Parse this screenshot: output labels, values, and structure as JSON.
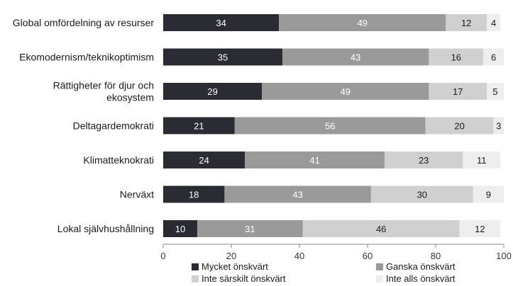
{
  "chart_data": {
    "type": "bar",
    "orientation": "horizontal",
    "stacked": true,
    "categories": [
      "Global omfördelning av resurser",
      "Ekomodernism/teknikoptimism",
      "Rättigheter för djur och ekosystem",
      "Deltagardemokrati",
      "Klimatteknokrati",
      "Nerväxt",
      "Lokal självhushållning"
    ],
    "category_lines": [
      [
        "Global omfördelning av resurser"
      ],
      [
        "Ekomodernism/teknikoptimism"
      ],
      [
        "Rättigheter för djur och",
        "ekosystem"
      ],
      [
        "Deltagardemokrati"
      ],
      [
        "Klimatteknokrati"
      ],
      [
        "Nerväxt"
      ],
      [
        "Lokal självhushållning"
      ]
    ],
    "series": [
      {
        "name": "Mycket önskvärt",
        "color": "#2b2b33",
        "label_color": "#ffffff",
        "values": [
          34,
          35,
          29,
          21,
          24,
          18,
          10
        ]
      },
      {
        "name": "Ganska önskvärt",
        "color": "#9a9a9a",
        "label_color": "#ffffff",
        "values": [
          49,
          43,
          49,
          56,
          41,
          43,
          31
        ]
      },
      {
        "name": "Inte särskilt önskvärt",
        "color": "#d0d0d0",
        "label_color": "#1a1a1a",
        "values": [
          12,
          16,
          17,
          20,
          23,
          30,
          46
        ]
      },
      {
        "name": "Inte alls önskvärt",
        "color": "#eeeeee",
        "label_color": "#1a1a1a",
        "values": [
          4,
          6,
          5,
          3,
          11,
          9,
          12
        ]
      }
    ],
    "xlim": [
      0,
      100
    ],
    "xticks": [
      0,
      20,
      40,
      60,
      80,
      100
    ],
    "xlabel": "",
    "ylabel": "",
    "title": "",
    "grid": false,
    "legend_position": "bottom"
  }
}
